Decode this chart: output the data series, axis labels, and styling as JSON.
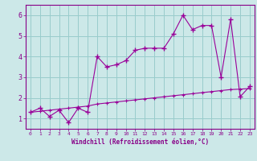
{
  "line1_x": [
    0,
    1,
    2,
    3,
    4,
    5,
    6,
    7,
    8,
    9,
    10,
    11,
    12,
    13,
    14,
    15,
    16,
    17,
    18,
    19,
    20,
    21,
    22,
    23
  ],
  "line1_y": [
    1.3,
    1.5,
    1.1,
    1.4,
    0.8,
    1.5,
    1.3,
    4.0,
    3.5,
    3.6,
    3.8,
    4.3,
    4.4,
    4.4,
    4.4,
    5.1,
    6.0,
    5.3,
    5.5,
    5.5,
    3.0,
    5.8,
    2.05,
    2.55
  ],
  "line2_x": [
    0,
    1,
    2,
    3,
    4,
    5,
    6,
    7,
    8,
    9,
    10,
    11,
    12,
    13,
    14,
    15,
    16,
    17,
    18,
    19,
    20,
    21,
    22,
    23
  ],
  "line2_y": [
    1.3,
    1.35,
    1.4,
    1.45,
    1.5,
    1.55,
    1.6,
    1.7,
    1.75,
    1.8,
    1.85,
    1.9,
    1.95,
    2.0,
    2.05,
    2.1,
    2.15,
    2.2,
    2.25,
    2.3,
    2.35,
    2.4,
    2.42,
    2.45
  ],
  "line_color": "#990099",
  "line2_color": "#990099",
  "bg_color": "#cce8e8",
  "grid_color": "#99cccc",
  "xlabel": "Windchill (Refroidissement éolien,°C)",
  "ylim": [
    0.5,
    6.5
  ],
  "xlim": [
    -0.5,
    23.5
  ],
  "yticks": [
    1,
    2,
    3,
    4,
    5,
    6
  ],
  "xticks": [
    0,
    1,
    2,
    3,
    4,
    5,
    6,
    7,
    8,
    9,
    10,
    11,
    12,
    13,
    14,
    15,
    16,
    17,
    18,
    19,
    20,
    21,
    22,
    23
  ],
  "xlabel_color": "#880088",
  "tick_color": "#880088"
}
